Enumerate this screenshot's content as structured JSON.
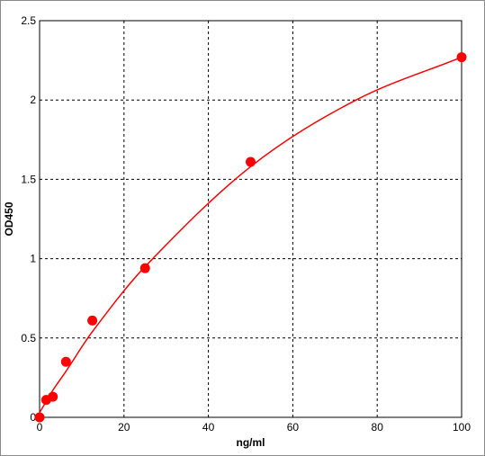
{
  "chart_data": {
    "type": "scatter",
    "title": "",
    "xlabel": "ng/ml",
    "ylabel": "OD450",
    "xlim": [
      0,
      100
    ],
    "ylim": [
      0,
      2.5
    ],
    "x_ticks": [
      0,
      20,
      40,
      60,
      80,
      100
    ],
    "x_tick_labels": [
      "0",
      "20",
      "40",
      "60",
      "80",
      "100"
    ],
    "y_ticks": [
      0,
      0.5,
      1,
      1.5,
      2,
      2.5
    ],
    "y_tick_labels": [
      "0",
      "0.5",
      "1",
      "1.5",
      "2",
      "2.5"
    ],
    "grid": true,
    "grid_style": "dashed",
    "legend": "none",
    "series": [
      {
        "kind": "points",
        "x": [
          0,
          1.56,
          3.13,
          6.25,
          12.5,
          25,
          50,
          100
        ],
        "y": [
          0.0,
          0.11,
          0.13,
          0.35,
          0.61,
          0.94,
          1.61,
          2.27
        ]
      },
      {
        "kind": "fitted-curve",
        "x": [
          0,
          1.56,
          3.13,
          6.25,
          12.5,
          25,
          50,
          75,
          100
        ],
        "y": [
          0.03,
          0.1,
          0.17,
          0.29,
          0.54,
          0.95,
          1.58,
          2.0,
          2.27
        ]
      }
    ],
    "colors": {
      "points": "#ff0000",
      "curve": "#ff0000",
      "grid": "#000000",
      "axes": "#000000",
      "text": "#000000"
    }
  }
}
